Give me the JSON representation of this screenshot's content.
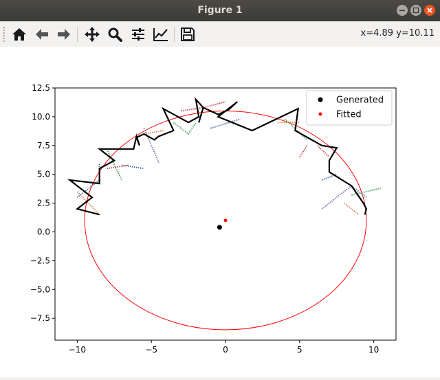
{
  "window": {
    "title": "Figure 1",
    "controls": [
      "minimize",
      "maximize",
      "close"
    ]
  },
  "toolbar": {
    "buttons": [
      {
        "name": "home",
        "icon": "home-icon"
      },
      {
        "name": "back",
        "icon": "arrow-left-icon"
      },
      {
        "name": "forward",
        "icon": "arrow-right-icon"
      },
      {
        "name": "pan",
        "icon": "move-icon"
      },
      {
        "name": "zoom",
        "icon": "magnifier-icon"
      },
      {
        "name": "configure-subplots",
        "icon": "sliders-icon"
      },
      {
        "name": "edit-axis",
        "icon": "line-chart-icon"
      },
      {
        "name": "save",
        "icon": "floppy-disk-icon"
      }
    ],
    "coords": "x=4.89 y=10.11"
  },
  "chart_data": {
    "type": "scatter",
    "xlim": [
      -11.5,
      11.5
    ],
    "ylim": [
      -9.4,
      12.5
    ],
    "xticks": [
      -10,
      -5,
      0,
      5,
      10
    ],
    "xtick_labels": [
      "−10",
      "−5",
      "0",
      "5",
      "10"
    ],
    "yticks": [
      -7.5,
      -5.0,
      -2.5,
      0.0,
      2.5,
      5.0,
      7.5,
      10.0,
      12.5
    ],
    "ytick_labels": [
      "−7.5",
      "−5.0",
      "−2.5",
      "0.0",
      "2.5",
      "5.0",
      "7.5",
      "10.0",
      "12.5"
    ],
    "legend": {
      "location": "top-right",
      "entries": [
        {
          "label": "Generated",
          "color": "#000000"
        },
        {
          "label": "Fitted",
          "color": "#ff0000"
        }
      ]
    },
    "generated_center": [
      -0.4,
      0.4
    ],
    "fitted_center": [
      0.0,
      1.0
    ],
    "fitted_ellipse": {
      "cx": 0.0,
      "cy": 1.0,
      "rx": 9.5,
      "ry": 9.5
    },
    "outline": [
      [
        -8.5,
        1.5
      ],
      [
        -10,
        2
      ],
      [
        -9,
        3
      ],
      [
        -10.5,
        4.5
      ],
      [
        -8.5,
        4.2
      ],
      [
        -8.5,
        5.5
      ],
      [
        -7.5,
        6.2
      ],
      [
        -8.5,
        7.2
      ],
      [
        -6.2,
        7.2
      ],
      [
        -6,
        8.3
      ],
      [
        -5.8,
        7.5
      ],
      [
        -6,
        8.2
      ],
      [
        -5.5,
        8.5
      ],
      [
        -4.8,
        8
      ],
      [
        -4.5,
        8.3
      ],
      [
        -3.5,
        8.8
      ],
      [
        -4.2,
        10.7
      ],
      [
        -2.5,
        9.5
      ],
      [
        -1.8,
        10
      ],
      [
        -2,
        11.5
      ],
      [
        -1.5,
        10.8
      ],
      [
        -1.8,
        9.5
      ],
      [
        -1.5,
        10.8
      ],
      [
        -0.5,
        10.2
      ],
      [
        0.2,
        10.6
      ],
      [
        0.8,
        11.3
      ],
      [
        -0.5,
        10
      ],
      [
        1.8,
        8.8
      ],
      [
        4.9,
        10.7
      ],
      [
        4.7,
        8.8
      ],
      [
        6.5,
        7.5
      ],
      [
        7.5,
        7.3
      ],
      [
        7,
        6.2
      ],
      [
        7,
        5.2
      ],
      [
        8.5,
        4
      ],
      [
        9.3,
        2.5
      ],
      [
        9.5,
        2
      ],
      [
        9.4,
        1.5
      ]
    ],
    "segments": [
      {
        "color": "#4c72b0",
        "points": [
          [
            -10,
            3
          ],
          [
            -8.5,
            4.5
          ],
          [
            -8.5,
            6
          ]
        ]
      },
      {
        "color": "#dd8452",
        "points": [
          [
            -10,
            3.5
          ],
          [
            -8.5,
            1.5
          ]
        ]
      },
      {
        "color": "#55a868",
        "points": [
          [
            -8,
            7.2
          ],
          [
            -7,
            4.5
          ]
        ]
      },
      {
        "color": "#c44e52",
        "points": [
          [
            -8,
            5.5
          ],
          [
            -6.5,
            5.8
          ]
        ]
      },
      {
        "color": "#4c72b0",
        "points": [
          [
            -7,
            5.8
          ],
          [
            -5.5,
            5.5
          ]
        ]
      },
      {
        "color": "#8172b3",
        "points": [
          [
            -5.5,
            9
          ],
          [
            -4.5,
            6
          ]
        ]
      },
      {
        "color": "#dd8452",
        "points": [
          [
            -5.5,
            8.5
          ],
          [
            -4.2,
            8.8
          ]
        ]
      },
      {
        "color": "#55a868",
        "points": [
          [
            -3.5,
            9.5
          ],
          [
            -2.5,
            8.5
          ],
          [
            -2,
            9.5
          ]
        ]
      },
      {
        "color": "#c44e52",
        "points": [
          [
            -3,
            10.5
          ],
          [
            -1.5,
            10.8
          ],
          [
            0,
            11.3
          ]
        ]
      },
      {
        "color": "#4c72b0",
        "points": [
          [
            -1,
            9
          ],
          [
            1,
            9.8
          ]
        ]
      },
      {
        "color": "#dd8452",
        "points": [
          [
            3.5,
            9.5
          ],
          [
            5,
            9.5
          ]
        ]
      },
      {
        "color": "#55a868",
        "points": [
          [
            4,
            9.8
          ],
          [
            5.5,
            8
          ]
        ]
      },
      {
        "color": "#c44e52",
        "points": [
          [
            5,
            6.5
          ],
          [
            5.5,
            7.5
          ]
        ]
      },
      {
        "color": "#4c72b0",
        "points": [
          [
            6.5,
            4.5
          ],
          [
            7.5,
            5
          ]
        ]
      },
      {
        "color": "#8172b3",
        "points": [
          [
            6.5,
            2
          ],
          [
            8.5,
            4
          ],
          [
            9.5,
            3
          ]
        ]
      },
      {
        "color": "#55a868",
        "points": [
          [
            8.5,
            3.2
          ],
          [
            10.5,
            3.8
          ]
        ]
      },
      {
        "color": "#dd8452",
        "points": [
          [
            8,
            2.5
          ],
          [
            9,
            1.5
          ]
        ]
      },
      {
        "color": "#c44e52",
        "points": [
          [
            6.2,
            7.5
          ],
          [
            7,
            6.5
          ]
        ]
      }
    ]
  }
}
